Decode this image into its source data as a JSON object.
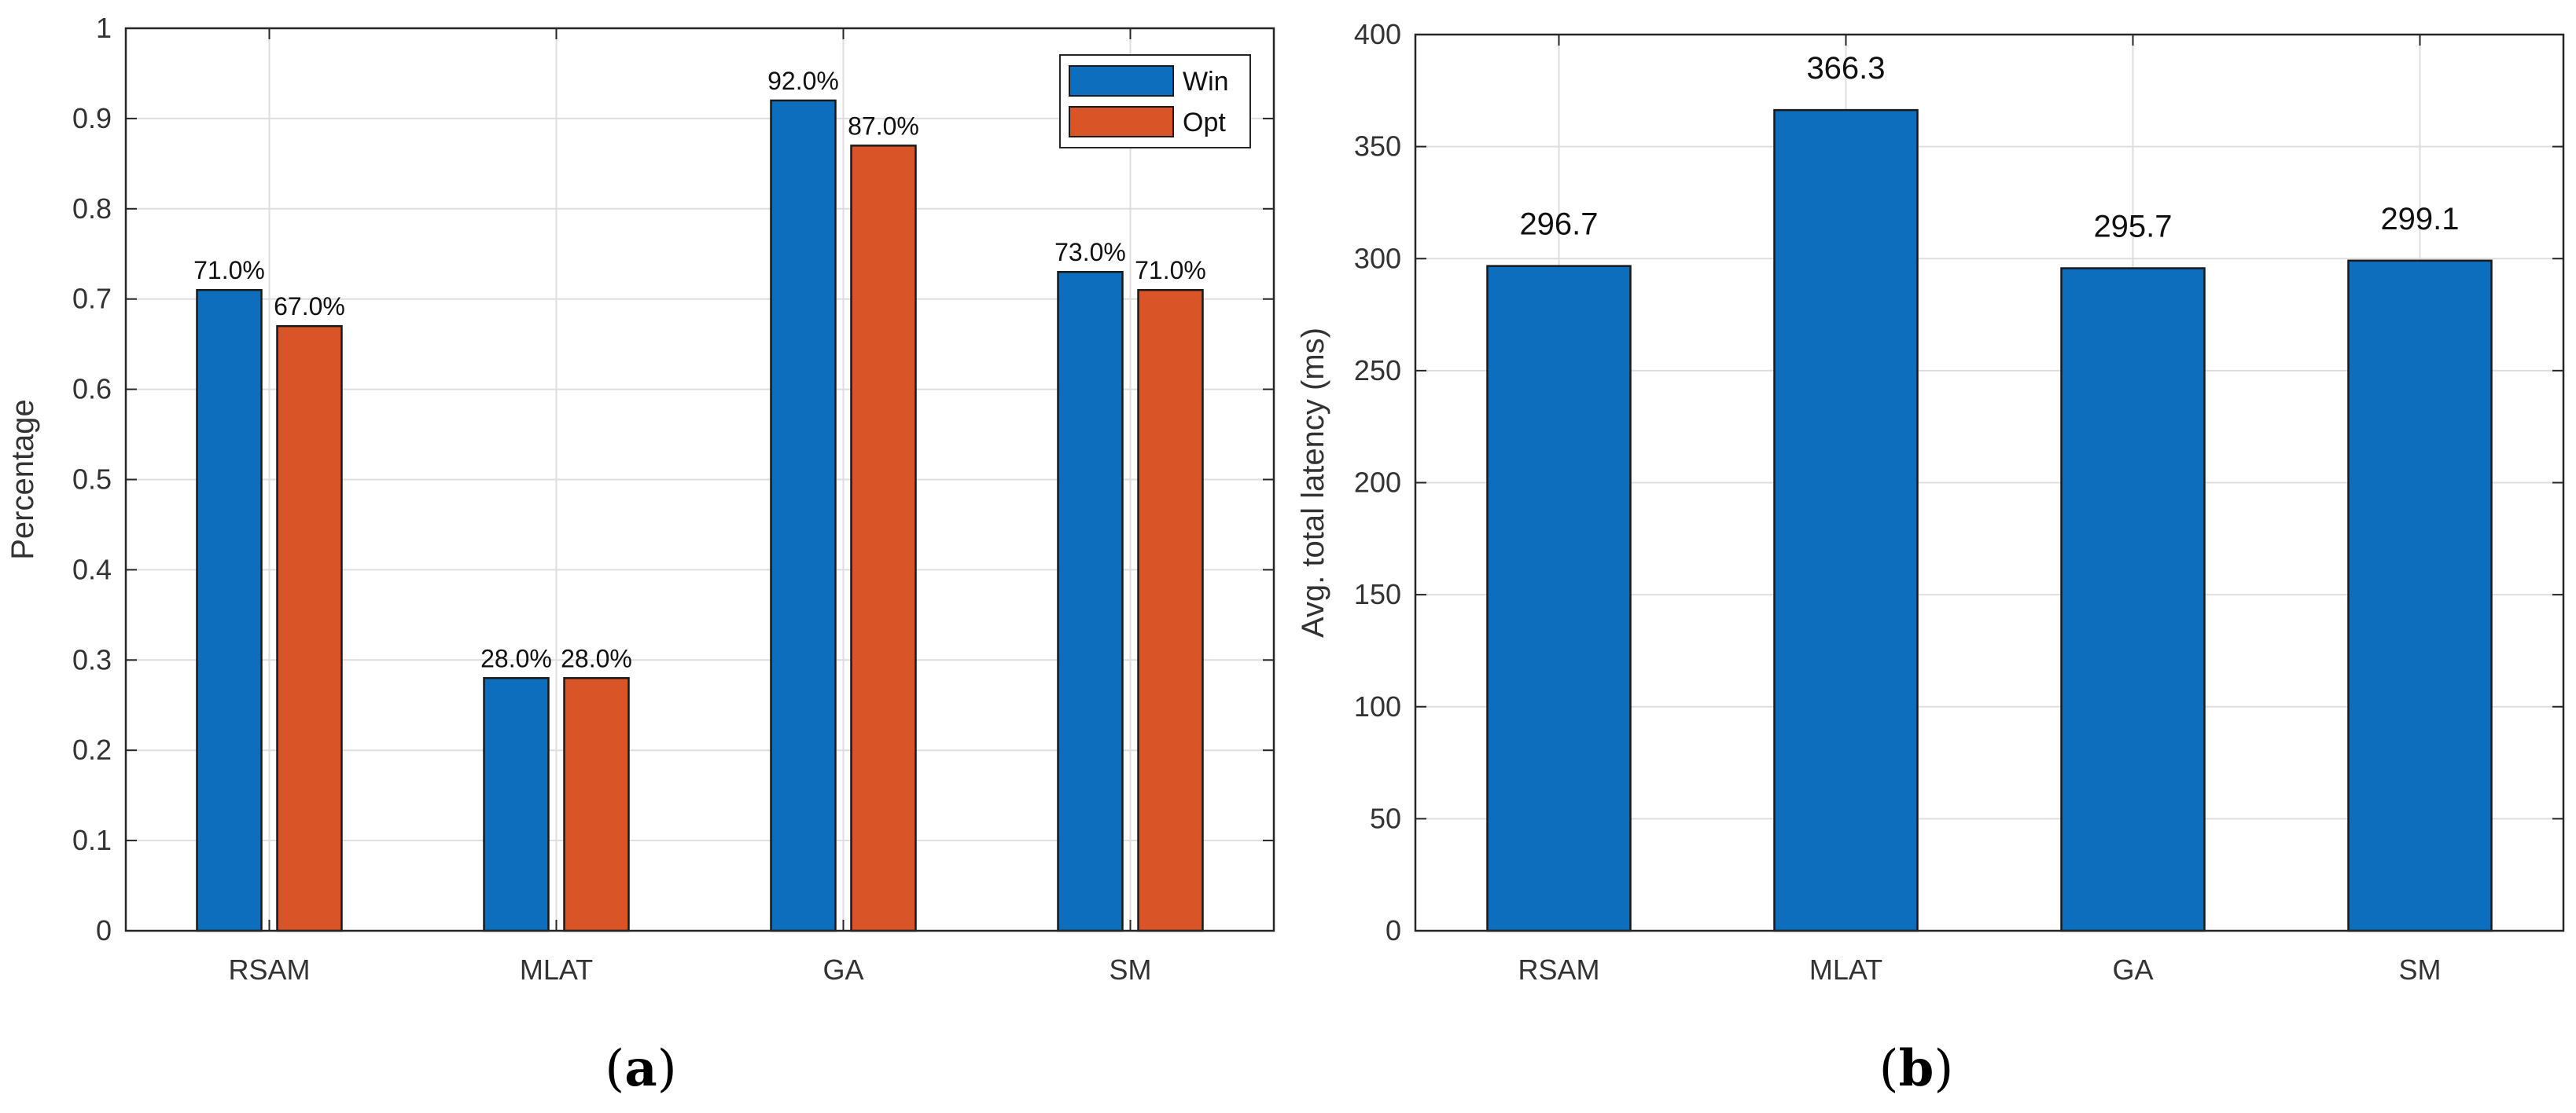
{
  "chart_data": [
    {
      "type": "bar",
      "caption": "(a)",
      "caption_letter": "a",
      "categories": [
        "RSAM",
        "MLAT",
        "GA",
        "SM"
      ],
      "series": [
        {
          "name": "Win",
          "color": "#0C6EBD",
          "values": [
            0.71,
            0.28,
            0.92,
            0.73
          ],
          "labels": [
            "71.0%",
            "28.0%",
            "92.0%",
            "73.0%"
          ]
        },
        {
          "name": "Opt",
          "color": "#D95427",
          "values": [
            0.67,
            0.28,
            0.87,
            0.71
          ],
          "labels": [
            "67.0%",
            "28.0%",
            "87.0%",
            "71.0%"
          ]
        }
      ],
      "ylabel": "Percentage",
      "xlabel": "",
      "ylim": [
        0,
        1
      ],
      "yticks": [
        "0",
        "0.1",
        "0.2",
        "0.3",
        "0.4",
        "0.5",
        "0.6",
        "0.7",
        "0.8",
        "0.9",
        "1"
      ],
      "grid": true,
      "legend_position": "top-right"
    },
    {
      "type": "bar",
      "caption": "(b)",
      "caption_letter": "b",
      "categories": [
        "RSAM",
        "MLAT",
        "GA",
        "SM"
      ],
      "series": [
        {
          "name": "Avg. total latency",
          "color": "#0C6EBD",
          "values": [
            296.7,
            366.3,
            295.7,
            299.1
          ],
          "labels": [
            "296.7",
            "366.3",
            "295.7",
            "299.1"
          ]
        }
      ],
      "ylabel": "Avg. total latency (ms)",
      "xlabel": "",
      "ylim": [
        0,
        400
      ],
      "yticks": [
        "0",
        "50",
        "100",
        "150",
        "200",
        "250",
        "300",
        "350",
        "400"
      ],
      "grid": true
    }
  ]
}
